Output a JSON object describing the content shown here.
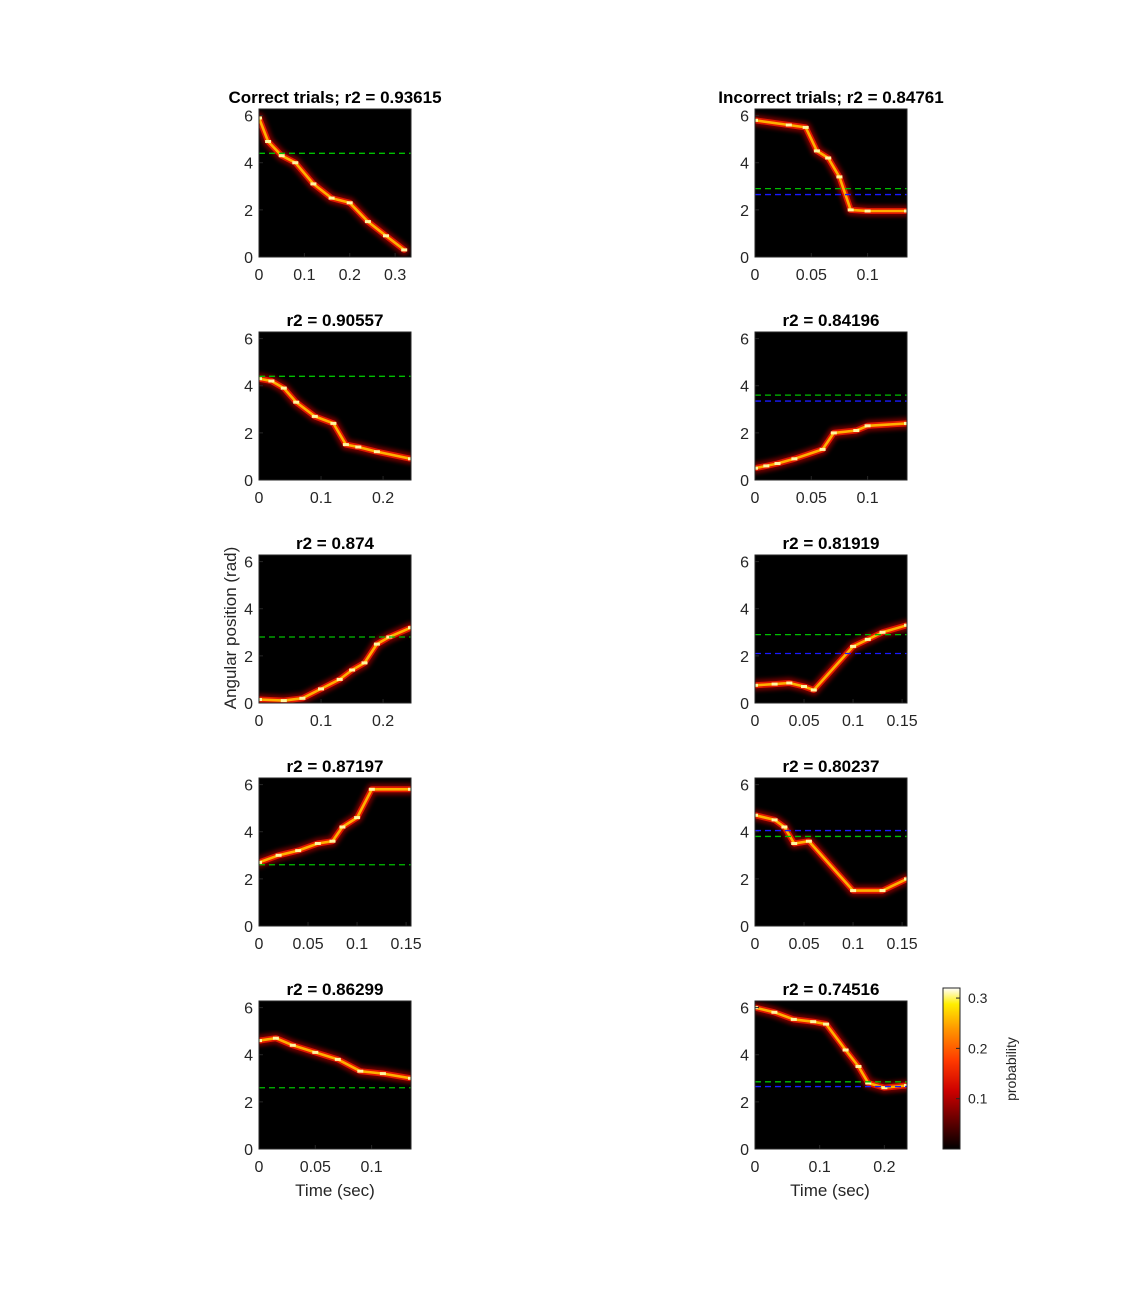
{
  "chart_data": {
    "type": "heatmap",
    "colormap": "hot",
    "background": "#000000",
    "ylabel": "Angular position (rad)",
    "xlabel": "Time (sec)",
    "ylim": [
      0,
      6.28
    ],
    "yticks": [
      "0",
      "2",
      "4",
      "6"
    ],
    "colorbar": {
      "label": "probability",
      "range": [
        0,
        0.32
      ],
      "ticks": [
        "0.1",
        "0.2",
        "0.3"
      ],
      "tick_values": [
        0.1,
        0.2,
        0.3
      ]
    },
    "reference_line_colors": {
      "green": "#00c000",
      "blue": "#1a1aff"
    },
    "panels": [
      {
        "id": "correct-1",
        "column": "left",
        "row": 0,
        "title": "Correct trials; r2 = 0.93615",
        "xlim": [
          0,
          0.335
        ],
        "xticks": [
          "0",
          "0.1",
          "0.2",
          "0.3"
        ],
        "xtick_values": [
          0,
          0.1,
          0.2,
          0.3
        ],
        "green_line": 4.4,
        "trajectory": [
          [
            0,
            5.9
          ],
          [
            0.02,
            4.9
          ],
          [
            0.05,
            4.3
          ],
          [
            0.08,
            4.0
          ],
          [
            0.12,
            3.1
          ],
          [
            0.16,
            2.5
          ],
          [
            0.2,
            2.3
          ],
          [
            0.24,
            1.5
          ],
          [
            0.28,
            0.9
          ],
          [
            0.32,
            0.3
          ]
        ]
      },
      {
        "id": "incorrect-1",
        "column": "right",
        "row": 0,
        "title": "Incorrect trials; r2 = 0.84761",
        "xlim": [
          0,
          0.135
        ],
        "xticks": [
          "0",
          "0.05",
          "0.1"
        ],
        "xtick_values": [
          0,
          0.05,
          0.1
        ],
        "green_line": 2.9,
        "blue_line": 2.65,
        "trajectory": [
          [
            0,
            5.8
          ],
          [
            0.03,
            5.6
          ],
          [
            0.045,
            5.5
          ],
          [
            0.055,
            4.5
          ],
          [
            0.065,
            4.2
          ],
          [
            0.075,
            3.4
          ],
          [
            0.085,
            2.0
          ],
          [
            0.1,
            1.95
          ],
          [
            0.135,
            1.95
          ]
        ]
      },
      {
        "id": "correct-2",
        "column": "left",
        "row": 1,
        "title": "r2 = 0.90557",
        "xlim": [
          0,
          0.245
        ],
        "xticks": [
          "0",
          "0.1",
          "0.2"
        ],
        "xtick_values": [
          0,
          0.1,
          0.2
        ],
        "green_line": 4.4,
        "trajectory": [
          [
            0,
            4.3
          ],
          [
            0.02,
            4.2
          ],
          [
            0.04,
            3.9
          ],
          [
            0.06,
            3.3
          ],
          [
            0.09,
            2.7
          ],
          [
            0.12,
            2.4
          ],
          [
            0.14,
            1.5
          ],
          [
            0.16,
            1.4
          ],
          [
            0.19,
            1.2
          ],
          [
            0.245,
            0.9
          ]
        ]
      },
      {
        "id": "incorrect-2",
        "column": "right",
        "row": 1,
        "title": "r2 = 0.84196",
        "xlim": [
          0,
          0.135
        ],
        "xticks": [
          "0",
          "0.05",
          "0.1"
        ],
        "xtick_values": [
          0,
          0.05,
          0.1
        ],
        "green_line": 3.6,
        "blue_line": 3.35,
        "trajectory": [
          [
            0,
            0.5
          ],
          [
            0.01,
            0.6
          ],
          [
            0.02,
            0.7
          ],
          [
            0.035,
            0.9
          ],
          [
            0.06,
            1.3
          ],
          [
            0.07,
            2.0
          ],
          [
            0.09,
            2.1
          ],
          [
            0.1,
            2.3
          ],
          [
            0.135,
            2.4
          ]
        ]
      },
      {
        "id": "correct-3",
        "column": "left",
        "row": 2,
        "title": "r2 = 0.874",
        "xlim": [
          0,
          0.245
        ],
        "xticks": [
          "0",
          "0.1",
          "0.2"
        ],
        "xtick_values": [
          0,
          0.1,
          0.2
        ],
        "green_line": 2.8,
        "trajectory": [
          [
            0,
            0.15
          ],
          [
            0.04,
            0.1
          ],
          [
            0.07,
            0.2
          ],
          [
            0.1,
            0.6
          ],
          [
            0.13,
            1.0
          ],
          [
            0.15,
            1.4
          ],
          [
            0.17,
            1.7
          ],
          [
            0.19,
            2.5
          ],
          [
            0.21,
            2.8
          ],
          [
            0.245,
            3.2
          ]
        ]
      },
      {
        "id": "incorrect-3",
        "column": "right",
        "row": 2,
        "title": "r2 = 0.81919",
        "xlim": [
          0,
          0.155
        ],
        "xticks": [
          "0",
          "0.05",
          "0.1",
          "0.15"
        ],
        "xtick_values": [
          0,
          0.05,
          0.1,
          0.15
        ],
        "green_line": 2.9,
        "blue_line": 2.1,
        "trajectory": [
          [
            0,
            0.75
          ],
          [
            0.02,
            0.8
          ],
          [
            0.035,
            0.85
          ],
          [
            0.05,
            0.7
          ],
          [
            0.06,
            0.55
          ],
          [
            0.1,
            2.4
          ],
          [
            0.115,
            2.7
          ],
          [
            0.13,
            3.0
          ],
          [
            0.155,
            3.3
          ]
        ]
      },
      {
        "id": "correct-4",
        "column": "left",
        "row": 3,
        "title": "r2 = 0.87197",
        "xlim": [
          0,
          0.155
        ],
        "xticks": [
          "0",
          "0.05",
          "0.1",
          "0.15"
        ],
        "xtick_values": [
          0,
          0.05,
          0.1,
          0.15
        ],
        "green_line": 2.6,
        "trajectory": [
          [
            0,
            2.7
          ],
          [
            0.02,
            3.0
          ],
          [
            0.04,
            3.2
          ],
          [
            0.06,
            3.5
          ],
          [
            0.075,
            3.6
          ],
          [
            0.085,
            4.2
          ],
          [
            0.1,
            4.6
          ],
          [
            0.115,
            5.8
          ],
          [
            0.155,
            5.8
          ]
        ]
      },
      {
        "id": "incorrect-4",
        "column": "right",
        "row": 3,
        "title": "r2 = 0.80237",
        "xlim": [
          0,
          0.155
        ],
        "xticks": [
          "0",
          "0.05",
          "0.1",
          "0.15"
        ],
        "xtick_values": [
          0,
          0.05,
          0.1,
          0.15
        ],
        "green_line": 3.8,
        "blue_line": 4.05,
        "trajectory": [
          [
            0,
            4.7
          ],
          [
            0.02,
            4.5
          ],
          [
            0.03,
            4.2
          ],
          [
            0.04,
            3.5
          ],
          [
            0.055,
            3.6
          ],
          [
            0.1,
            1.5
          ],
          [
            0.13,
            1.5
          ],
          [
            0.155,
            2.0
          ]
        ]
      },
      {
        "id": "correct-5",
        "column": "left",
        "row": 4,
        "title": "r2 = 0.86299",
        "xlim": [
          0,
          0.135
        ],
        "xticks": [
          "0",
          "0.05",
          "0.1"
        ],
        "xtick_values": [
          0,
          0.05,
          0.1
        ],
        "green_line": 2.6,
        "trajectory": [
          [
            0,
            4.6
          ],
          [
            0.015,
            4.7
          ],
          [
            0.03,
            4.4
          ],
          [
            0.05,
            4.1
          ],
          [
            0.07,
            3.8
          ],
          [
            0.09,
            3.3
          ],
          [
            0.11,
            3.2
          ],
          [
            0.135,
            3.0
          ]
        ]
      },
      {
        "id": "incorrect-5",
        "column": "right",
        "row": 4,
        "title": "r2 = 0.74516",
        "xlim": [
          0,
          0.235
        ],
        "xticks": [
          "0",
          "0.1",
          "0.2"
        ],
        "xtick_values": [
          0,
          0.1,
          0.2
        ],
        "green_line": 2.85,
        "blue_line": 2.65,
        "trajectory": [
          [
            0,
            6.0
          ],
          [
            0.03,
            5.8
          ],
          [
            0.06,
            5.5
          ],
          [
            0.09,
            5.4
          ],
          [
            0.11,
            5.3
          ],
          [
            0.14,
            4.2
          ],
          [
            0.16,
            3.5
          ],
          [
            0.175,
            2.8
          ],
          [
            0.2,
            2.6
          ],
          [
            0.235,
            2.7
          ]
        ]
      }
    ]
  }
}
